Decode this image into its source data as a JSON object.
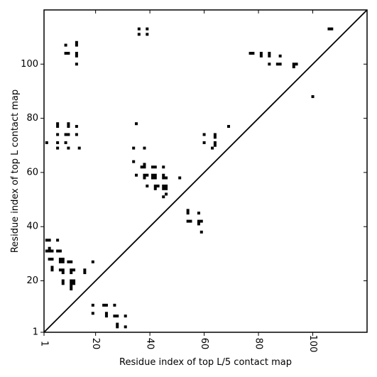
{
  "chart_data": {
    "type": "scatter",
    "xlabel": "Residue index of top L/5 contact map",
    "ylabel": "Residue index of top L contact map",
    "xlim": [
      1,
      120
    ],
    "ylim": [
      1,
      120
    ],
    "xticks": [
      1,
      20,
      40,
      60,
      80,
      100
    ],
    "yticks": [
      1,
      20,
      40,
      60,
      80,
      100
    ],
    "xtick_labels": [
      "1",
      "20",
      "40",
      "60",
      "80",
      "100"
    ],
    "ytick_labels": [
      "1",
      "20",
      "40",
      "60",
      "80",
      "100"
    ],
    "diagonal": true,
    "marker": "square",
    "color": "#000000",
    "upper_points": [
      [
        36,
        113
      ],
      [
        36,
        111
      ],
      [
        39,
        113
      ],
      [
        39,
        111
      ],
      [
        9,
        107
      ],
      [
        9,
        104
      ],
      [
        10,
        104
      ],
      [
        13,
        108
      ],
      [
        13,
        107
      ],
      [
        13,
        104
      ],
      [
        13,
        103
      ],
      [
        13,
        100
      ],
      [
        77,
        104
      ],
      [
        78,
        104
      ],
      [
        81,
        104
      ],
      [
        81,
        103
      ],
      [
        84,
        104
      ],
      [
        84,
        103
      ],
      [
        84,
        100
      ],
      [
        87,
        100
      ],
      [
        88,
        100
      ],
      [
        88,
        103
      ],
      [
        93,
        100
      ],
      [
        94,
        100
      ],
      [
        93,
        99
      ],
      [
        100,
        88
      ],
      [
        106,
        113
      ],
      [
        107,
        113
      ],
      [
        2,
        71
      ],
      [
        6,
        78
      ],
      [
        6,
        77
      ],
      [
        6,
        74
      ],
      [
        6,
        71
      ],
      [
        6,
        69
      ],
      [
        9,
        74
      ],
      [
        10,
        74
      ],
      [
        9,
        71
      ],
      [
        10,
        78
      ],
      [
        10,
        77
      ],
      [
        10,
        69
      ],
      [
        13,
        77
      ],
      [
        13,
        74
      ],
      [
        14,
        69
      ],
      [
        35,
        78
      ],
      [
        34,
        69
      ],
      [
        38,
        69
      ],
      [
        60,
        74
      ],
      [
        60,
        71
      ],
      [
        64,
        74
      ],
      [
        64,
        73
      ],
      [
        64,
        71
      ],
      [
        64,
        70
      ],
      [
        63,
        69
      ],
      [
        69,
        77
      ]
    ],
    "lower_points": [
      [
        34,
        64
      ],
      [
        37,
        62
      ],
      [
        38,
        63
      ],
      [
        38,
        62
      ],
      [
        41,
        62
      ],
      [
        42,
        62
      ],
      [
        45,
        62
      ],
      [
        35,
        59
      ],
      [
        38,
        59
      ],
      [
        39,
        59
      ],
      [
        41,
        59
      ],
      [
        42,
        59
      ],
      [
        41,
        58
      ],
      [
        42,
        58
      ],
      [
        38,
        58
      ],
      [
        45,
        59
      ],
      [
        45,
        58
      ],
      [
        46,
        58
      ],
      [
        39,
        55
      ],
      [
        42,
        55
      ],
      [
        43,
        55
      ],
      [
        42,
        54
      ],
      [
        45,
        55
      ],
      [
        46,
        55
      ],
      [
        45,
        54
      ],
      [
        46,
        54
      ],
      [
        46,
        52
      ],
      [
        45,
        51
      ],
      [
        51,
        58
      ],
      [
        54,
        46
      ],
      [
        54,
        45
      ],
      [
        58,
        45
      ],
      [
        54,
        42
      ],
      [
        55,
        42
      ],
      [
        58,
        42
      ],
      [
        59,
        42
      ],
      [
        58,
        41
      ],
      [
        59,
        38
      ],
      [
        2,
        35
      ],
      [
        3,
        35
      ],
      [
        6,
        35
      ],
      [
        2,
        31
      ],
      [
        3,
        31
      ],
      [
        4,
        31
      ],
      [
        3,
        32
      ],
      [
        6,
        31
      ],
      [
        7,
        31
      ],
      [
        3,
        28
      ],
      [
        4,
        28
      ],
      [
        7,
        28
      ],
      [
        8,
        28
      ],
      [
        7,
        27
      ],
      [
        8,
        27
      ],
      [
        4,
        25
      ],
      [
        4,
        24
      ],
      [
        7,
        24
      ],
      [
        8,
        24
      ],
      [
        8,
        23
      ],
      [
        10,
        27
      ],
      [
        11,
        27
      ],
      [
        11,
        24
      ],
      [
        12,
        24
      ],
      [
        11,
        23
      ],
      [
        16,
        24
      ],
      [
        16,
        23
      ],
      [
        19,
        27
      ],
      [
        8,
        20
      ],
      [
        8,
        19
      ],
      [
        11,
        20
      ],
      [
        12,
        20
      ],
      [
        11,
        19
      ],
      [
        12,
        19
      ],
      [
        11,
        18
      ],
      [
        11,
        17
      ],
      [
        19,
        11
      ],
      [
        19,
        8
      ],
      [
        23,
        11
      ],
      [
        24,
        11
      ],
      [
        24,
        8
      ],
      [
        24,
        7
      ],
      [
        27,
        11
      ],
      [
        27,
        7
      ],
      [
        28,
        7
      ],
      [
        28,
        4
      ],
      [
        28,
        3
      ],
      [
        31,
        7
      ],
      [
        31,
        3
      ]
    ]
  }
}
